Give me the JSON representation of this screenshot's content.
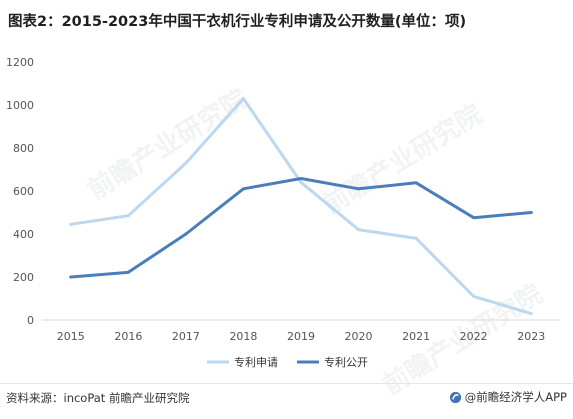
{
  "title": "图表2：2015-2023年中国干衣机行业专利申请及公开数量(单位：项)",
  "footer": {
    "source": "资料来源：incoPat 前瞻产业研究院",
    "brand": "@前瞻经济学人APP"
  },
  "watermark": "前瞻产业研究院",
  "colors": {
    "application": "#bdd7ee",
    "publication": "#4a7ebb"
  },
  "chart_data": {
    "type": "line",
    "title": "图表2：2015-2023年中国干衣机行业专利申请及公开数量(单位：项)",
    "x": [
      "2015",
      "2016",
      "2017",
      "2018",
      "2019",
      "2020",
      "2021",
      "2022",
      "2023"
    ],
    "ylim": [
      0,
      1200
    ],
    "yticks": [
      0,
      200,
      400,
      600,
      800,
      1000,
      1200
    ],
    "grid": false,
    "legend": "bottom-center",
    "series": [
      {
        "name": "专利申请",
        "values": [
          445,
          485,
          730,
          1030,
          640,
          420,
          380,
          110,
          30
        ]
      },
      {
        "name": "专利公开",
        "values": [
          200,
          222,
          400,
          610,
          658,
          610,
          638,
          476,
          500
        ]
      }
    ]
  }
}
